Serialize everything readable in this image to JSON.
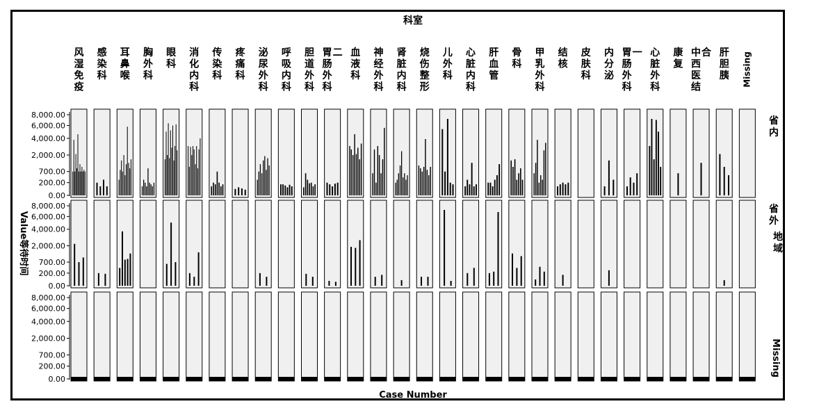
{
  "chart_data": {
    "type": "bar",
    "title": "科室",
    "xlabel": "Case Number",
    "ylabel": "Value等待时间",
    "row_facet_label": "地域",
    "columns": [
      "风湿免疫",
      "感染科",
      "耳鼻喉",
      "胸外科",
      "眼科",
      "消化内科",
      "传染科",
      "疼痛科",
      "泌尿外科",
      "呼吸内科",
      "胆道外科",
      "胃肠外科二",
      "血液科",
      "神经外科",
      "肾脏内科",
      "烧伤整形",
      "儿外科",
      "心脏内科",
      "肝血管",
      "骨科",
      "甲乳外科",
      "结核",
      "皮肤科",
      "内分泌",
      "胃肠外科一",
      "心脏外科",
      "康复",
      "中西医结合",
      "肝胆胰",
      "Missing"
    ],
    "rows": [
      "省内",
      "省外",
      "Missing"
    ],
    "y_ticks": [
      0,
      200,
      700,
      2000,
      4000,
      6000,
      8000
    ],
    "y_tick_labels": [
      "0.00",
      "200.00",
      "700.00",
      "2,000.00",
      "4,000.00",
      "6,000.00",
      "8,000.00"
    ],
    "ylim": [
      0,
      8000
    ],
    "y_scale": "sqrt",
    "panels": [
      {
        "row": 0,
        "col": 0,
        "values": [
          700,
          3800,
          700,
          2100,
          900,
          4600,
          700,
          1200,
          700,
          1000,
          700,
          800,
          700
        ]
      },
      {
        "row": 0,
        "col": 1,
        "values": [
          200,
          100,
          300,
          100
        ]
      },
      {
        "row": 0,
        "col": 2,
        "values": [
          300,
          800,
          1500,
          700,
          2000,
          500,
          1200,
          5800,
          1300,
          900,
          1600
        ]
      },
      {
        "row": 0,
        "col": 3,
        "values": [
          100,
          300,
          200,
          100,
          900,
          200,
          150,
          100,
          200
        ]
      },
      {
        "row": 0,
        "col": 4,
        "values": [
          1600,
          5000,
          2000,
          6400,
          1700,
          5200,
          2800,
          6000,
          1500,
          3000,
          6200,
          2500
        ]
      },
      {
        "row": 0,
        "col": 5,
        "values": [
          3000,
          1000,
          2900,
          2000,
          3000,
          2600,
          1200,
          3000,
          900,
          2600,
          4000
        ]
      },
      {
        "row": 0,
        "col": 6,
        "values": [
          100,
          200,
          150,
          700,
          200,
          100,
          150
        ]
      },
      {
        "row": 0,
        "col": 7,
        "values": [
          50,
          80,
          60,
          40
        ]
      },
      {
        "row": 0,
        "col": 8,
        "values": [
          300,
          700,
          1200,
          600,
          1500,
          1900,
          800,
          1700,
          1100
        ]
      },
      {
        "row": 0,
        "col": 9,
        "values": [
          150,
          150,
          120,
          80,
          140,
          100
        ]
      },
      {
        "row": 0,
        "col": 10,
        "values": [
          80,
          600,
          300,
          180,
          200,
          100,
          150
        ]
      },
      {
        "row": 0,
        "col": 11,
        "values": [
          200,
          150,
          100,
          170,
          200
        ]
      },
      {
        "row": 0,
        "col": 12,
        "values": [
          3000,
          2600,
          2000,
          4600,
          2100,
          2800,
          1600,
          3300
        ]
      },
      {
        "row": 0,
        "col": 13,
        "values": [
          600,
          2600,
          200,
          3000,
          2000,
          600,
          1600,
          5600
        ]
      },
      {
        "row": 0,
        "col": 14,
        "values": [
          200,
          300,
          600,
          1100,
          2400,
          400,
          600,
          300,
          500
        ]
      },
      {
        "row": 0,
        "col": 15,
        "values": [
          1100,
          900,
          700,
          1000,
          3900,
          800,
          500,
          1000
        ]
      },
      {
        "row": 0,
        "col": 16,
        "values": [
          5400,
          700,
          7200,
          200,
          150
        ]
      },
      {
        "row": 0,
        "col": 17,
        "values": [
          100,
          300,
          150,
          1300,
          100,
          150
        ]
      },
      {
        "row": 0,
        "col": 18,
        "values": [
          200,
          200,
          100,
          300,
          500,
          1200
        ]
      },
      {
        "row": 0,
        "col": 19,
        "values": [
          1500,
          1000,
          1600,
          300,
          600,
          900,
          300
        ]
      },
      {
        "row": 0,
        "col": 20,
        "values": [
          600,
          1300,
          3800,
          200,
          500,
          300,
          2500,
          3400
        ]
      },
      {
        "row": 0,
        "col": 21,
        "values": [
          100,
          150,
          200,
          150,
          200
        ]
      },
      {
        "row": 0,
        "col": 22,
        "values": []
      },
      {
        "row": 0,
        "col": 23,
        "values": [
          100,
          1500,
          300
        ]
      },
      {
        "row": 0,
        "col": 24,
        "values": [
          100,
          400,
          200,
          600
        ]
      },
      {
        "row": 0,
        "col": 25,
        "values": [
          3000,
          7200,
          1600,
          7000,
          5000,
          1000
        ]
      },
      {
        "row": 0,
        "col": 26,
        "values": [
          600
        ]
      },
      {
        "row": 0,
        "col": 27,
        "values": [
          1300
        ]
      },
      {
        "row": 0,
        "col": 28,
        "values": [
          2100,
          1000,
          500
        ]
      },
      {
        "row": 0,
        "col": 29,
        "values": []
      },
      {
        "row": 1,
        "col": 0,
        "values": [
          2200,
          700,
          1000
        ]
      },
      {
        "row": 1,
        "col": 1,
        "values": [
          200,
          180
        ]
      },
      {
        "row": 1,
        "col": 2,
        "values": [
          400,
          3700,
          850,
          900,
          1300
        ]
      },
      {
        "row": 1,
        "col": 3,
        "values": []
      },
      {
        "row": 1,
        "col": 4,
        "values": [
          600,
          5000,
          700
        ]
      },
      {
        "row": 1,
        "col": 5,
        "values": [
          200,
          100,
          1400
        ]
      },
      {
        "row": 1,
        "col": 6,
        "values": []
      },
      {
        "row": 1,
        "col": 7,
        "values": []
      },
      {
        "row": 1,
        "col": 8,
        "values": [
          200,
          100
        ]
      },
      {
        "row": 1,
        "col": 9,
        "values": []
      },
      {
        "row": 1,
        "col": 10,
        "values": [
          180,
          100
        ]
      },
      {
        "row": 1,
        "col": 11,
        "values": [
          30,
          20
        ]
      },
      {
        "row": 1,
        "col": 12,
        "values": [
          1900,
          1800,
          2600
        ]
      },
      {
        "row": 1,
        "col": 13,
        "values": [
          100,
          150
        ]
      },
      {
        "row": 1,
        "col": 14,
        "values": [
          40
        ]
      },
      {
        "row": 1,
        "col": 15,
        "values": [
          100,
          100
        ]
      },
      {
        "row": 1,
        "col": 16,
        "values": [
          7200,
          30
        ]
      },
      {
        "row": 1,
        "col": 17,
        "values": [
          200,
          400
        ]
      },
      {
        "row": 1,
        "col": 18,
        "values": [
          200,
          250,
          6800
        ]
      },
      {
        "row": 1,
        "col": 19,
        "values": [
          1300,
          400,
          1100
        ]
      },
      {
        "row": 1,
        "col": 20,
        "values": [
          50,
          450,
          250
        ]
      },
      {
        "row": 1,
        "col": 21,
        "values": [
          150
        ]
      },
      {
        "row": 1,
        "col": 22,
        "values": []
      },
      {
        "row": 1,
        "col": 23,
        "values": [
          300
        ]
      },
      {
        "row": 1,
        "col": 24,
        "values": []
      },
      {
        "row": 1,
        "col": 25,
        "values": []
      },
      {
        "row": 1,
        "col": 26,
        "values": []
      },
      {
        "row": 1,
        "col": 27,
        "values": []
      },
      {
        "row": 1,
        "col": 28,
        "values": [
          40
        ]
      },
      {
        "row": 1,
        "col": 29,
        "values": []
      }
    ]
  }
}
